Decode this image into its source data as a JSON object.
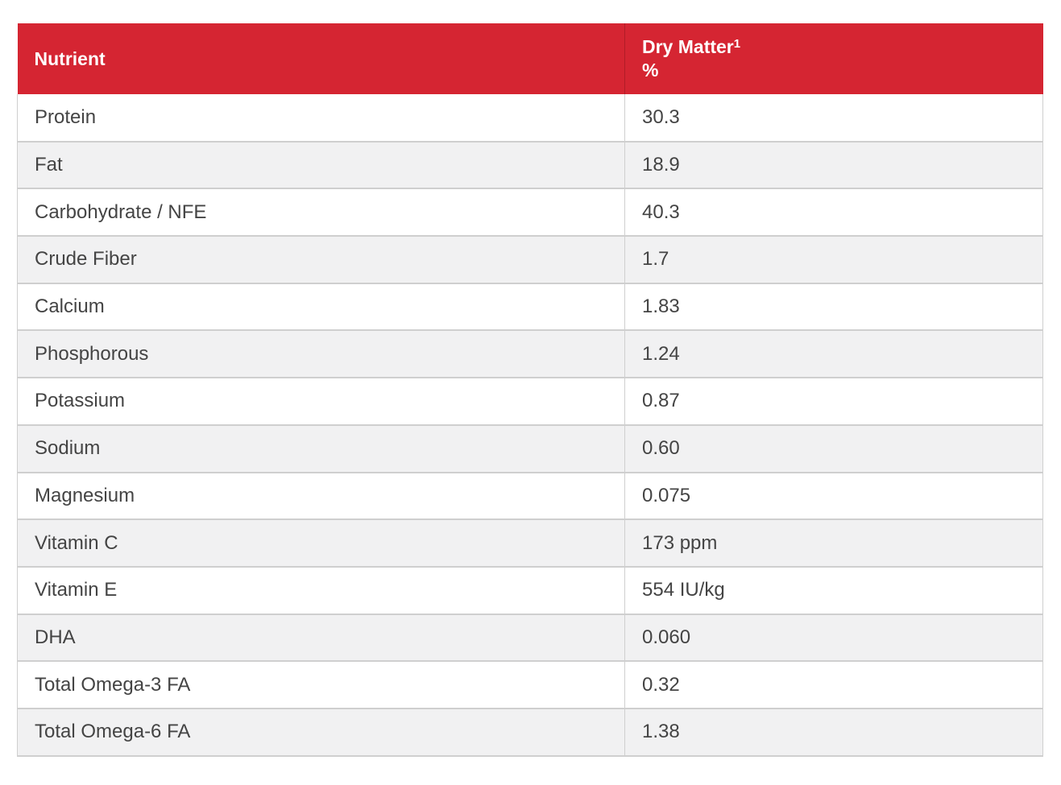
{
  "table": {
    "headers": {
      "nutrient": "Nutrient",
      "dry_matter": "Dry Matter",
      "dry_matter_footnote": "1",
      "dry_matter_unit": "%"
    },
    "rows": [
      {
        "nutrient": "Protein",
        "value": "30.3"
      },
      {
        "nutrient": "Fat",
        "value": "18.9"
      },
      {
        "nutrient": "Carbohydrate / NFE",
        "value": "40.3"
      },
      {
        "nutrient": "Crude Fiber",
        "value": "1.7"
      },
      {
        "nutrient": "Calcium",
        "value": "1.83"
      },
      {
        "nutrient": "Phosphorous",
        "value": "1.24"
      },
      {
        "nutrient": "Potassium",
        "value": "0.87"
      },
      {
        "nutrient": "Sodium",
        "value": "0.60"
      },
      {
        "nutrient": "Magnesium",
        "value": "0.075"
      },
      {
        "nutrient": "Vitamin C",
        "value": "173 ppm"
      },
      {
        "nutrient": "Vitamin E",
        "value": "554 IU/kg"
      },
      {
        "nutrient": "DHA",
        "value": "0.060"
      },
      {
        "nutrient": "Total Omega-3 FA",
        "value": "0.32"
      },
      {
        "nutrient": "Total Omega-6 FA",
        "value": "1.38"
      }
    ]
  },
  "colors": {
    "header_bg": "#d52532",
    "row_alt_bg": "#f1f1f2",
    "border": "#cfcfcf"
  }
}
